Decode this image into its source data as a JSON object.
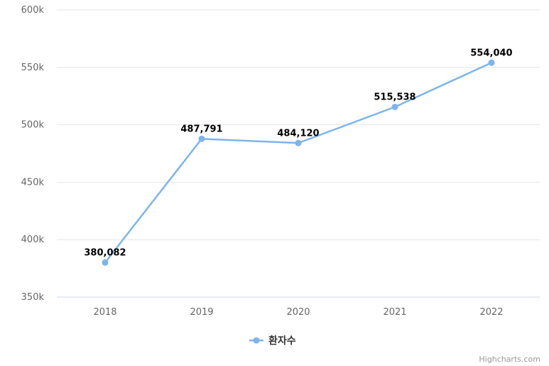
{
  "chart_data": {
    "type": "line",
    "x": [
      "2018",
      "2019",
      "2020",
      "2021",
      "2022"
    ],
    "series": [
      {
        "name": "환자수",
        "values": [
          380082,
          487791,
          484120,
          515538,
          554040
        ],
        "data_labels": [
          "380,082",
          "487,791",
          "484,120",
          "515,538",
          "554,040"
        ],
        "color": "#7cb5ec"
      }
    ],
    "ylim": [
      350000,
      600000
    ],
    "yticks": [
      350000,
      400000,
      450000,
      500000,
      550000,
      600000
    ],
    "ytick_labels": [
      "350k",
      "400k",
      "450k",
      "500k",
      "550k",
      "600k"
    ],
    "grid": true,
    "legend_position": "bottom-center"
  },
  "credits": "Highcharts.com",
  "colors": {
    "grid": "#e6e6e6",
    "axis": "#ccd6eb",
    "series": "#7cb5ec"
  }
}
